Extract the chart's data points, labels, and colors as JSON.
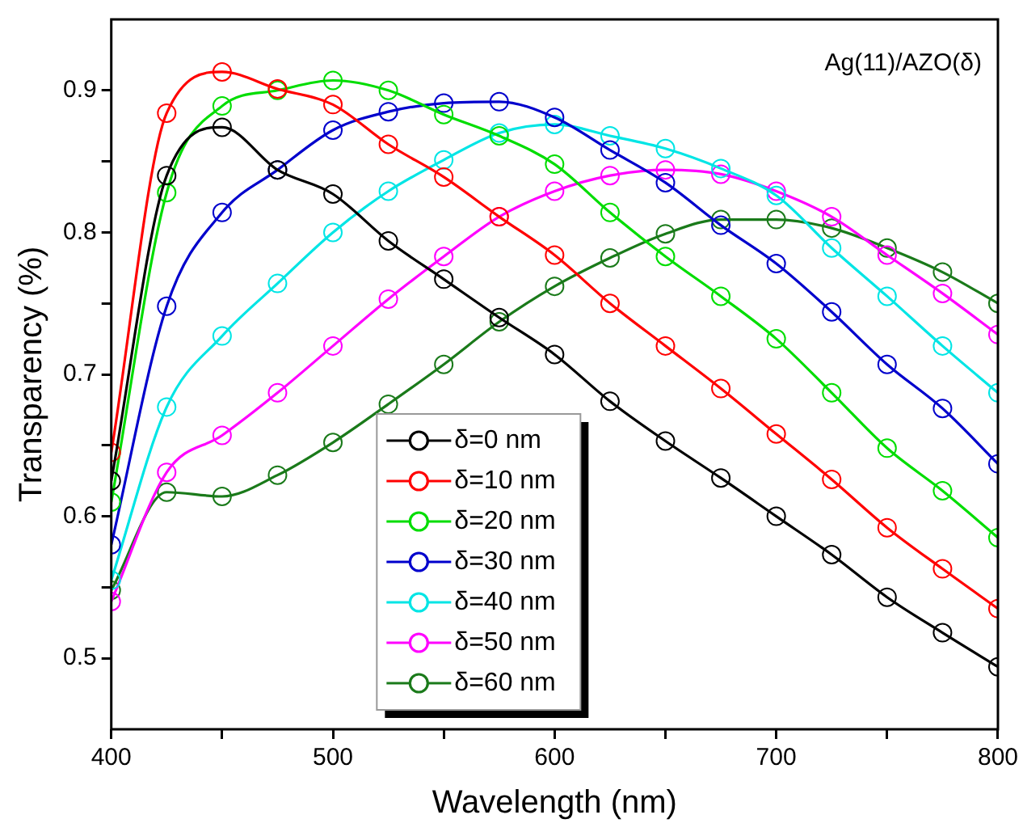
{
  "chart_data": {
    "type": "line",
    "xlabel": "Wavelength (nm)",
    "ylabel": "Transparency (%)",
    "annotations": [
      "Ag(11)/AZO(δ)"
    ],
    "x": [
      400,
      425,
      450,
      475,
      500,
      525,
      550,
      575,
      600,
      625,
      650,
      675,
      700,
      725,
      750,
      775,
      800
    ],
    "xlim": [
      400,
      800
    ],
    "xticks": [
      400,
      {
        "value": 450,
        "label": null
      },
      500,
      {
        "value": 550,
        "label": null
      },
      600,
      {
        "value": 650,
        "label": null
      },
      700,
      {
        "value": 750,
        "label": null
      },
      800
    ],
    "ylim": [
      0.45,
      0.95
    ],
    "yticks": [
      {
        "value": 0.5,
        "label": "0.5"
      },
      {
        "value": 0.55,
        "label": null
      },
      {
        "value": 0.6,
        "label": "0.6"
      },
      {
        "value": 0.65,
        "label": null
      },
      {
        "value": 0.7,
        "label": "0.7"
      },
      {
        "value": 0.75,
        "label": null
      },
      {
        "value": 0.8,
        "label": "0.8"
      },
      {
        "value": 0.85,
        "label": null
      },
      {
        "value": 0.9,
        "label": "0.9"
      }
    ],
    "grid": false,
    "legend": "bottom",
    "marker": "circle",
    "line_style": "solid",
    "series": [
      {
        "name": "δ=0 nm",
        "color": "#000000",
        "values": [
          0.625,
          0.84,
          0.874,
          0.844,
          0.827,
          0.794,
          0.767,
          0.74,
          0.714,
          0.681,
          0.653,
          0.627,
          0.6,
          0.573,
          0.543,
          0.518,
          0.494
        ]
      },
      {
        "name": "δ=10 nm",
        "color": "#ff0000",
        "values": [
          0.645,
          0.884,
          0.913,
          0.901,
          0.89,
          0.862,
          0.839,
          0.811,
          0.784,
          0.75,
          0.72,
          0.69,
          0.658,
          0.626,
          0.592,
          0.563,
          0.535
        ]
      },
      {
        "name": "δ=20 nm",
        "color": "#00dd00",
        "values": [
          0.61,
          0.828,
          0.889,
          0.9,
          0.907,
          0.9,
          0.883,
          0.868,
          0.848,
          0.814,
          0.783,
          0.755,
          0.725,
          0.687,
          0.648,
          0.618,
          0.585
        ]
      },
      {
        "name": "δ=30 nm",
        "color": "#0000cc",
        "values": [
          0.58,
          0.748,
          0.814,
          0.844,
          0.872,
          0.885,
          0.891,
          0.892,
          0.881,
          0.858,
          0.835,
          0.805,
          0.778,
          0.744,
          0.707,
          0.676,
          0.637
        ]
      },
      {
        "name": "δ=40 nm",
        "color": "#00e5e5",
        "values": [
          0.555,
          0.677,
          0.727,
          0.764,
          0.8,
          0.829,
          0.851,
          0.87,
          0.876,
          0.868,
          0.859,
          0.845,
          0.826,
          0.789,
          0.755,
          0.72,
          0.687
        ]
      },
      {
        "name": "δ=50 nm",
        "color": "#ff00ff",
        "values": [
          0.54,
          0.631,
          0.657,
          0.687,
          0.72,
          0.753,
          0.783,
          0.811,
          0.829,
          0.84,
          0.844,
          0.841,
          0.829,
          0.811,
          0.784,
          0.757,
          0.728
        ]
      },
      {
        "name": "δ=60 nm",
        "color": "#1a7a1a",
        "values": [
          0.548,
          0.617,
          0.614,
          0.629,
          0.652,
          0.679,
          0.707,
          0.737,
          0.762,
          0.782,
          0.799,
          0.809,
          0.809,
          0.803,
          0.789,
          0.772,
          0.75
        ]
      }
    ]
  }
}
